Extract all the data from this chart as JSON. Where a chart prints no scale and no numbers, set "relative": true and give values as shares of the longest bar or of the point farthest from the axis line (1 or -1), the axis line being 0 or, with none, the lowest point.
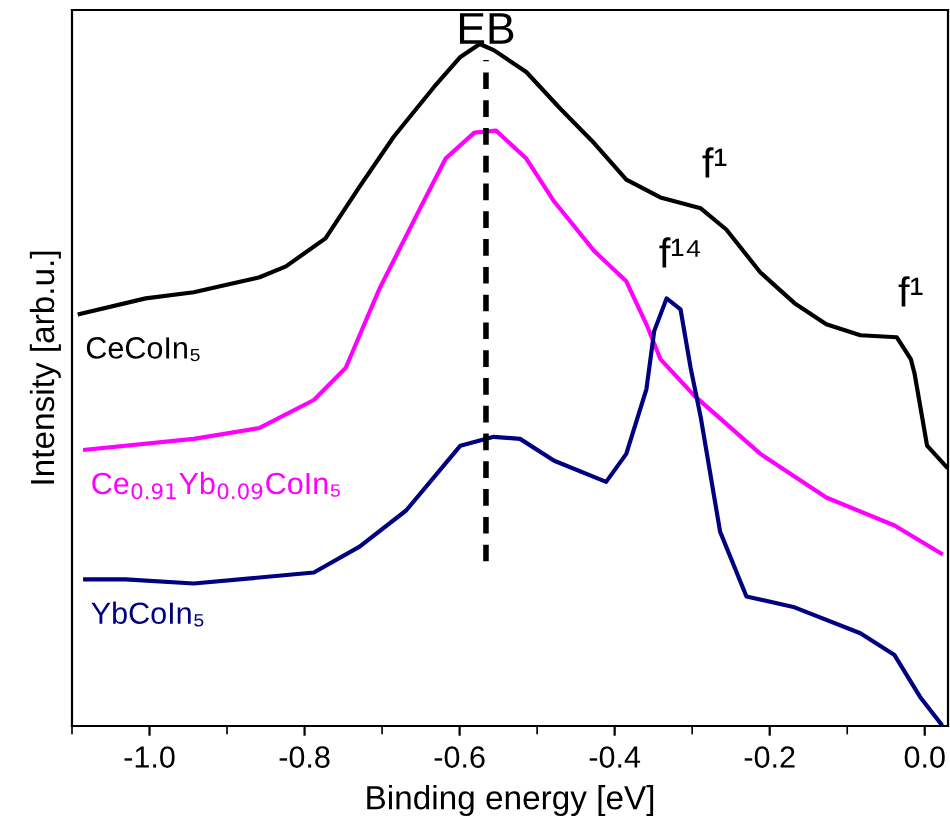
{
  "chart_data": {
    "type": "line",
    "relative": true,
    "xlabel": "Binding energy [eV]",
    "ylabel": "Intensity [arb.u.]",
    "xlim": [
      -1.1,
      0.03
    ],
    "xticks": [
      {
        "value": -1.0,
        "label": "-1.0"
      },
      {
        "value": -0.8,
        "label": "-0.8"
      },
      {
        "value": -0.6,
        "label": "-0.6"
      },
      {
        "value": -0.4,
        "label": "-0.4"
      },
      {
        "value": -0.2,
        "label": "-0.2"
      },
      {
        "value": 0.0,
        "label": "0.0"
      }
    ],
    "grid": false,
    "legend": false,
    "series": [
      {
        "name": "CeCoIn₅",
        "color": "#000000",
        "x": [
          -1.09,
          -1.005,
          -0.943,
          -0.858,
          -0.824,
          -0.773,
          -0.729,
          -0.685,
          -0.633,
          -0.599,
          -0.574,
          -0.556,
          -0.514,
          -0.47,
          -0.426,
          -0.385,
          -0.341,
          -0.289,
          -0.256,
          -0.212,
          -0.168,
          -0.127,
          -0.083,
          -0.036,
          -0.018,
          -0.013,
          0.003,
          0.028
        ],
        "values": [
          0.604,
          0.627,
          0.636,
          0.658,
          0.674,
          0.715,
          0.791,
          0.864,
          0.937,
          0.981,
          1.0,
          0.991,
          0.959,
          0.905,
          0.854,
          0.801,
          0.775,
          0.759,
          0.728,
          0.665,
          0.62,
          0.589,
          0.573,
          0.57,
          0.538,
          0.516,
          0.411,
          0.38
        ]
      },
      {
        "name": "Ce$_{0.91}$Yb$_{0.09}$CoIn₅",
        "color": "#ff00ff",
        "x": [
          -1.083,
          -0.943,
          -0.858,
          -0.788,
          -0.747,
          -0.703,
          -0.651,
          -0.618,
          -0.581,
          -0.553,
          -0.514,
          -0.478,
          -0.426,
          -0.385,
          -0.359,
          -0.341,
          -0.297,
          -0.212,
          -0.127,
          -0.039,
          0.021
        ],
        "values": [
          0.405,
          0.421,
          0.437,
          0.478,
          0.525,
          0.642,
          0.759,
          0.832,
          0.87,
          0.873,
          0.832,
          0.769,
          0.696,
          0.652,
          0.589,
          0.538,
          0.484,
          0.399,
          0.335,
          0.294,
          0.253
        ]
      },
      {
        "name": "YbCoIn₅",
        "color": "#000080",
        "x": [
          -1.083,
          -1.031,
          -0.943,
          -0.788,
          -0.729,
          -0.669,
          -0.599,
          -0.556,
          -0.522,
          -0.478,
          -0.411,
          -0.385,
          -0.359,
          -0.349,
          -0.333,
          -0.315,
          -0.302,
          -0.289,
          -0.264,
          -0.23,
          -0.168,
          -0.083,
          -0.039,
          -0.005,
          0.021
        ],
        "values": [
          0.215,
          0.215,
          0.209,
          0.225,
          0.263,
          0.316,
          0.411,
          0.424,
          0.421,
          0.389,
          0.358,
          0.399,
          0.494,
          0.579,
          0.627,
          0.611,
          0.525,
          0.453,
          0.285,
          0.19,
          0.174,
          0.136,
          0.104,
          0.041,
          0.003
        ]
      }
    ],
    "ref_lines": [
      {
        "axis": "x",
        "value": -0.566,
        "label": "EB",
        "color": "#000000",
        "line_style": "dashed"
      }
    ],
    "annotations": [
      {
        "text": "f¹",
        "x": -0.289,
        "y": 0.759
      },
      {
        "text": "f¹⁴",
        "x": -0.333,
        "y": 0.627
      },
      {
        "text": "f¹",
        "x": -0.036,
        "y": 0.57
      }
    ]
  }
}
